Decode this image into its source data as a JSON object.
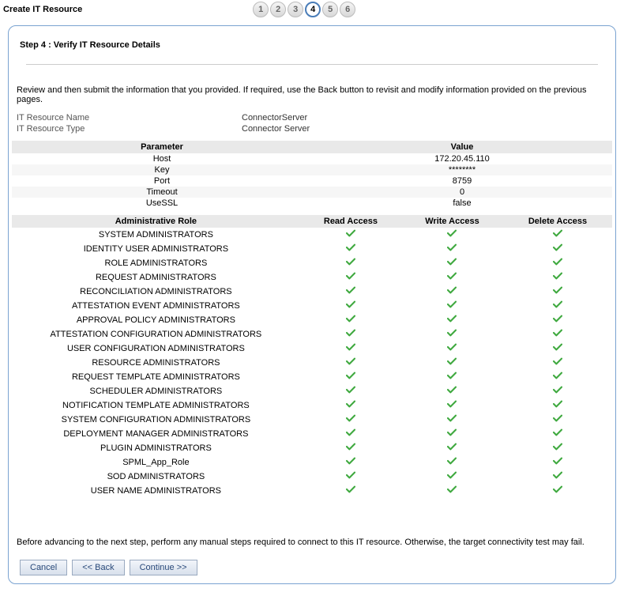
{
  "page_title": "Create IT Resource",
  "stepper": {
    "steps": [
      "1",
      "2",
      "3",
      "4",
      "5",
      "6"
    ],
    "current": 4
  },
  "step_heading": "Step 4 : Verify IT Resource Details",
  "instructions": "Review and then submit the information that you provided. If required, use the Back button to revisit and modify information provided on the previous pages.",
  "resource": {
    "name_label": "IT Resource Name",
    "name_value": "ConnectorServer",
    "type_label": "IT Resource Type",
    "type_value": "Connector Server"
  },
  "params_table": {
    "headers": [
      "Parameter",
      "Value"
    ],
    "rows": [
      {
        "param": "Host",
        "value": "172.20.45.110"
      },
      {
        "param": "Key",
        "value": "********"
      },
      {
        "param": "Port",
        "value": "8759"
      },
      {
        "param": "Timeout",
        "value": "0"
      },
      {
        "param": "UseSSL",
        "value": "false"
      }
    ]
  },
  "roles_table": {
    "headers": [
      "Administrative Role",
      "Read Access",
      "Write Access",
      "Delete Access"
    ],
    "check_color": "#3fa93f",
    "rows": [
      {
        "role": "SYSTEM ADMINISTRATORS",
        "read": true,
        "write": true,
        "delete": true
      },
      {
        "role": "IDENTITY USER ADMINISTRATORS",
        "read": true,
        "write": true,
        "delete": true
      },
      {
        "role": "ROLE ADMINISTRATORS",
        "read": true,
        "write": true,
        "delete": true
      },
      {
        "role": "REQUEST ADMINISTRATORS",
        "read": true,
        "write": true,
        "delete": true
      },
      {
        "role": "RECONCILIATION ADMINISTRATORS",
        "read": true,
        "write": true,
        "delete": true
      },
      {
        "role": "ATTESTATION EVENT ADMINISTRATORS",
        "read": true,
        "write": true,
        "delete": true
      },
      {
        "role": "APPROVAL POLICY ADMINISTRATORS",
        "read": true,
        "write": true,
        "delete": true
      },
      {
        "role": "ATTESTATION CONFIGURATION ADMINISTRATORS",
        "read": true,
        "write": true,
        "delete": true
      },
      {
        "role": "USER CONFIGURATION ADMINISTRATORS",
        "read": true,
        "write": true,
        "delete": true
      },
      {
        "role": "RESOURCE ADMINISTRATORS",
        "read": true,
        "write": true,
        "delete": true
      },
      {
        "role": "REQUEST TEMPLATE ADMINISTRATORS",
        "read": true,
        "write": true,
        "delete": true
      },
      {
        "role": "SCHEDULER ADMINISTRATORS",
        "read": true,
        "write": true,
        "delete": true
      },
      {
        "role": "NOTIFICATION TEMPLATE ADMINISTRATORS",
        "read": true,
        "write": true,
        "delete": true
      },
      {
        "role": "SYSTEM CONFIGURATION ADMINISTRATORS",
        "read": true,
        "write": true,
        "delete": true
      },
      {
        "role": "DEPLOYMENT MANAGER ADMINISTRATORS",
        "read": true,
        "write": true,
        "delete": true
      },
      {
        "role": "PLUGIN ADMINISTRATORS",
        "read": true,
        "write": true,
        "delete": true
      },
      {
        "role": "SPML_App_Role",
        "read": true,
        "write": true,
        "delete": true
      },
      {
        "role": "SOD ADMINISTRATORS",
        "read": true,
        "write": true,
        "delete": true
      },
      {
        "role": "USER NAME ADMINISTRATORS",
        "read": true,
        "write": true,
        "delete": true
      }
    ]
  },
  "footer_note": "Before advancing to the next step, perform any manual steps required to connect to this IT resource. Otherwise, the target connectivity test may fail.",
  "buttons": {
    "cancel": "Cancel",
    "back": "<< Back",
    "continue": "Continue >>"
  },
  "colors": {
    "panel_border": "#7aa3d1",
    "table_header_bg": "#e9e9e9",
    "button_border": "#9aaac0"
  }
}
